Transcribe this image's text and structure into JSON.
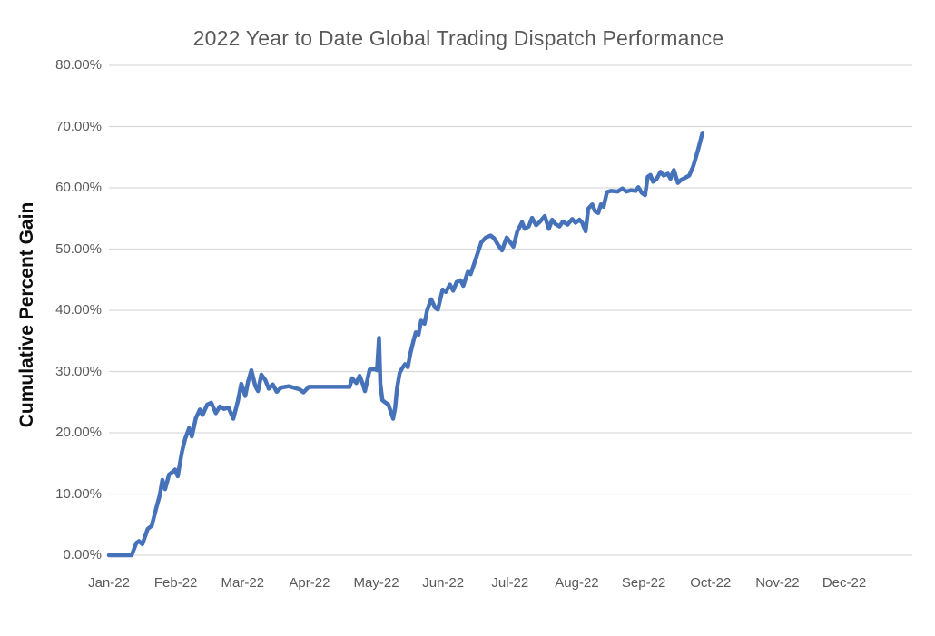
{
  "chart_data": {
    "type": "line",
    "title": "2022 Year to Date Global Trading Dispatch Performance",
    "xlabel": "",
    "ylabel": "Cumulative Percent Gain",
    "ylim": [
      0,
      80
    ],
    "grid": true,
    "legend": "none",
    "colors": {
      "line": "#4672BA",
      "gridline": "#D9D9D9",
      "title_text": "#595959",
      "tick_text": "#595959",
      "axis_title_text": "#0D0D0D",
      "background": "#FFFFFF"
    },
    "y_ticks": [
      {
        "value": 0,
        "label": "0.00%"
      },
      {
        "value": 10,
        "label": "10.00%"
      },
      {
        "value": 20,
        "label": "20.00%"
      },
      {
        "value": 30,
        "label": "30.00%"
      },
      {
        "value": 40,
        "label": "40.00%"
      },
      {
        "value": 50,
        "label": "50.00%"
      },
      {
        "value": 60,
        "label": "60.00%"
      },
      {
        "value": 70,
        "label": "70.00%"
      },
      {
        "value": 80,
        "label": "80.00%"
      }
    ],
    "x_tick_labels": [
      "Jan-22",
      "Feb-22",
      "Mar-22",
      "Apr-22",
      "May-22",
      "Jun-22",
      "Jul-22",
      "Aug-22",
      "Sep-22",
      "Oct-22",
      "Nov-22",
      "Dec-22"
    ],
    "series": [
      {
        "name": "Cumulative Percent Gain",
        "x_unit": "months-since-Jan-22-tick",
        "points": [
          [
            0.0,
            0.0
          ],
          [
            0.34,
            0.0
          ],
          [
            0.41,
            2.0
          ],
          [
            0.45,
            2.3
          ],
          [
            0.5,
            1.8
          ],
          [
            0.58,
            4.3
          ],
          [
            0.64,
            4.8
          ],
          [
            0.71,
            7.8
          ],
          [
            0.76,
            9.8
          ],
          [
            0.8,
            12.3
          ],
          [
            0.84,
            10.8
          ],
          [
            0.9,
            13.2
          ],
          [
            0.95,
            13.6
          ],
          [
            0.99,
            14.0
          ],
          [
            1.03,
            12.9
          ],
          [
            1.09,
            16.8
          ],
          [
            1.14,
            19.0
          ],
          [
            1.2,
            20.8
          ],
          [
            1.24,
            19.4
          ],
          [
            1.3,
            22.4
          ],
          [
            1.36,
            23.8
          ],
          [
            1.4,
            22.9
          ],
          [
            1.47,
            24.6
          ],
          [
            1.53,
            24.9
          ],
          [
            1.6,
            23.2
          ],
          [
            1.66,
            24.3
          ],
          [
            1.72,
            23.9
          ],
          [
            1.79,
            24.1
          ],
          [
            1.86,
            22.3
          ],
          [
            1.93,
            25.2
          ],
          [
            1.98,
            28.0
          ],
          [
            2.04,
            26.0
          ],
          [
            2.08,
            28.3
          ],
          [
            2.13,
            30.2
          ],
          [
            2.19,
            27.6
          ],
          [
            2.23,
            26.8
          ],
          [
            2.28,
            29.5
          ],
          [
            2.34,
            28.6
          ],
          [
            2.39,
            27.2
          ],
          [
            2.45,
            27.9
          ],
          [
            2.51,
            26.7
          ],
          [
            2.58,
            27.4
          ],
          [
            2.69,
            27.6
          ],
          [
            2.85,
            27.1
          ],
          [
            2.91,
            26.6
          ],
          [
            2.99,
            27.5
          ],
          [
            3.6,
            27.5
          ],
          [
            3.64,
            28.9
          ],
          [
            3.7,
            28.1
          ],
          [
            3.75,
            29.3
          ],
          [
            3.8,
            27.9
          ],
          [
            3.83,
            26.8
          ],
          [
            3.9,
            30.3
          ],
          [
            3.97,
            30.4
          ],
          [
            4.01,
            30.2
          ],
          [
            4.04,
            35.5
          ],
          [
            4.06,
            28.0
          ],
          [
            4.09,
            25.3
          ],
          [
            4.14,
            24.9
          ],
          [
            4.18,
            24.6
          ],
          [
            4.23,
            23.0
          ],
          [
            4.25,
            22.3
          ],
          [
            4.28,
            24.0
          ],
          [
            4.31,
            27.3
          ],
          [
            4.35,
            29.8
          ],
          [
            4.39,
            30.6
          ],
          [
            4.43,
            31.2
          ],
          [
            4.47,
            30.7
          ],
          [
            4.51,
            33.0
          ],
          [
            4.55,
            34.8
          ],
          [
            4.59,
            36.4
          ],
          [
            4.63,
            36.0
          ],
          [
            4.67,
            38.3
          ],
          [
            4.72,
            37.8
          ],
          [
            4.76,
            40.0
          ],
          [
            4.82,
            41.8
          ],
          [
            4.88,
            40.4
          ],
          [
            4.92,
            40.1
          ],
          [
            4.99,
            43.4
          ],
          [
            5.04,
            43.0
          ],
          [
            5.1,
            44.2
          ],
          [
            5.15,
            43.2
          ],
          [
            5.2,
            44.6
          ],
          [
            5.26,
            44.9
          ],
          [
            5.3,
            44.0
          ],
          [
            5.37,
            46.3
          ],
          [
            5.41,
            45.9
          ],
          [
            5.46,
            47.5
          ],
          [
            5.52,
            49.5
          ],
          [
            5.57,
            51.1
          ],
          [
            5.64,
            51.9
          ],
          [
            5.71,
            52.2
          ],
          [
            5.76,
            51.8
          ],
          [
            5.82,
            50.7
          ],
          [
            5.88,
            49.8
          ],
          [
            5.95,
            51.9
          ],
          [
            6.01,
            51.0
          ],
          [
            6.05,
            50.4
          ],
          [
            6.11,
            52.9
          ],
          [
            6.18,
            54.4
          ],
          [
            6.22,
            53.3
          ],
          [
            6.28,
            53.7
          ],
          [
            6.33,
            55.1
          ],
          [
            6.39,
            53.9
          ],
          [
            6.45,
            54.5
          ],
          [
            6.52,
            55.4
          ],
          [
            6.58,
            53.3
          ],
          [
            6.63,
            54.8
          ],
          [
            6.68,
            54.1
          ],
          [
            6.74,
            53.7
          ],
          [
            6.79,
            54.5
          ],
          [
            6.86,
            54.0
          ],
          [
            6.93,
            54.9
          ],
          [
            6.98,
            54.3
          ],
          [
            7.04,
            54.8
          ],
          [
            7.08,
            54.3
          ],
          [
            7.13,
            52.9
          ],
          [
            7.17,
            56.6
          ],
          [
            7.23,
            57.3
          ],
          [
            7.27,
            56.2
          ],
          [
            7.32,
            55.9
          ],
          [
            7.36,
            57.3
          ],
          [
            7.4,
            56.9
          ],
          [
            7.45,
            59.3
          ],
          [
            7.51,
            59.5
          ],
          [
            7.61,
            59.4
          ],
          [
            7.68,
            59.9
          ],
          [
            7.74,
            59.4
          ],
          [
            7.81,
            59.6
          ],
          [
            7.88,
            59.5
          ],
          [
            7.92,
            60.1
          ],
          [
            7.97,
            59.2
          ],
          [
            8.02,
            58.8
          ],
          [
            8.06,
            61.8
          ],
          [
            8.1,
            62.1
          ],
          [
            8.14,
            61.0
          ],
          [
            8.19,
            61.4
          ],
          [
            8.25,
            62.6
          ],
          [
            8.3,
            62.0
          ],
          [
            8.36,
            62.3
          ],
          [
            8.4,
            61.5
          ],
          [
            8.45,
            62.9
          ],
          [
            8.51,
            60.8
          ],
          [
            8.56,
            61.3
          ],
          [
            8.63,
            61.7
          ],
          [
            8.68,
            62.0
          ],
          [
            8.74,
            63.5
          ],
          [
            8.78,
            65.0
          ],
          [
            8.82,
            66.5
          ],
          [
            8.86,
            68.2
          ],
          [
            8.88,
            69.0
          ]
        ]
      }
    ]
  }
}
